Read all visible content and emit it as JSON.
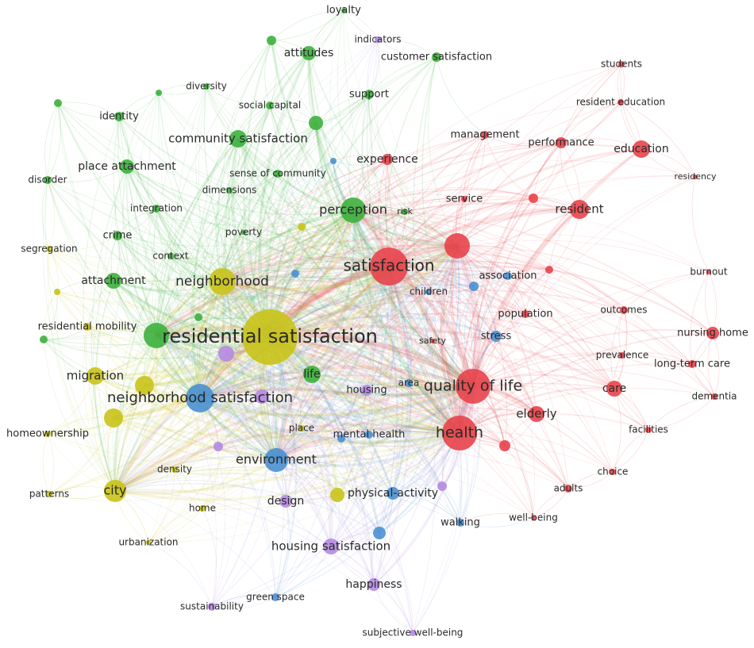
{
  "clusters": [
    {
      "nodes": [
        {
          "label": "students"
        },
        {
          "label": "resident education"
        },
        {
          "label": "management"
        },
        {
          "label": "performance"
        },
        {
          "label": "education"
        },
        {
          "label": "residency"
        },
        {
          "label": "experience"
        },
        {
          "label": "service"
        },
        {
          "label": "resident"
        },
        {
          "label": "satisfaction"
        },
        {
          "label": "burnout"
        },
        {
          "label": "population"
        },
        {
          "label": "outcomes"
        },
        {
          "label": "safety"
        },
        {
          "label": "nursing home"
        },
        {
          "label": "prevalence"
        },
        {
          "label": "long-term care"
        },
        {
          "label": "quality of life"
        },
        {
          "label": "care"
        },
        {
          "label": "dementia"
        },
        {
          "label": "elderly"
        },
        {
          "label": "health"
        },
        {
          "label": "facilities"
        },
        {
          "label": "choice"
        },
        {
          "label": "adults"
        },
        {
          "label": "well-being"
        }
      ]
    },
    {
      "nodes": [
        {
          "label": "loyalty"
        },
        {
          "label": "attitudes"
        },
        {
          "label": "customer satisfaction"
        },
        {
          "label": "support"
        },
        {
          "label": "diversity"
        },
        {
          "label": "social capital"
        },
        {
          "label": "identity"
        },
        {
          "label": "community satisfaction"
        },
        {
          "label": "place attachment"
        },
        {
          "label": "sense of community"
        },
        {
          "label": "disorder"
        },
        {
          "label": "dimensions"
        },
        {
          "label": "integration"
        },
        {
          "label": "perception"
        },
        {
          "label": "risk"
        },
        {
          "label": "poverty"
        },
        {
          "label": "crime"
        },
        {
          "label": "context"
        },
        {
          "label": "attachment"
        },
        {
          "label": "life"
        }
      ]
    },
    {
      "nodes": [
        {
          "label": "neighborhood satisfaction"
        },
        {
          "label": "environment"
        },
        {
          "label": "stress"
        },
        {
          "label": "association"
        },
        {
          "label": "children"
        },
        {
          "label": "area"
        },
        {
          "label": "mental health"
        },
        {
          "label": "physical-activity"
        },
        {
          "label": "walking"
        },
        {
          "label": "green space"
        }
      ]
    },
    {
      "nodes": [
        {
          "label": "segregation"
        },
        {
          "label": "neighborhood"
        },
        {
          "label": "residential satisfaction"
        },
        {
          "label": "residential mobility"
        },
        {
          "label": "migration"
        },
        {
          "label": "homeownership"
        },
        {
          "label": "city"
        },
        {
          "label": "patterns"
        },
        {
          "label": "density"
        },
        {
          "label": "home"
        },
        {
          "label": "urbanization"
        },
        {
          "label": "place"
        }
      ]
    },
    {
      "nodes": [
        {
          "label": "indicators"
        },
        {
          "label": "housing"
        },
        {
          "label": "design"
        },
        {
          "label": "housing satisfaction"
        },
        {
          "label": "happiness"
        },
        {
          "label": "sustainability"
        },
        {
          "label": "subjective well-being"
        }
      ]
    }
  ]
}
